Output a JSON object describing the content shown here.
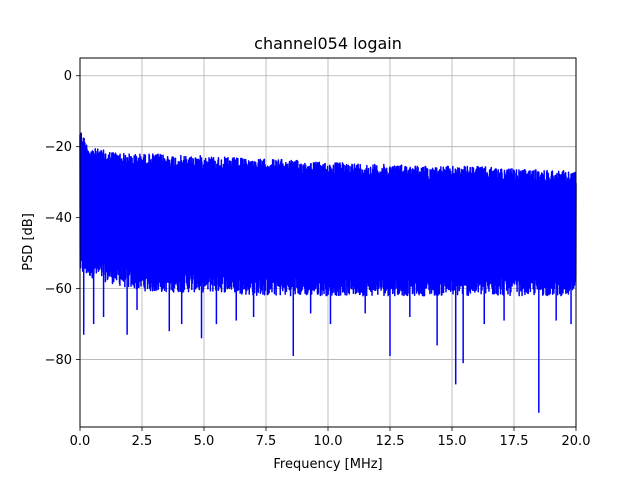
{
  "chart_data": {
    "type": "line",
    "title": "channel054 logain",
    "xlabel": "Frequency [MHz]",
    "ylabel": "PSD [dB]",
    "xlim": [
      0,
      20
    ],
    "ylim": [
      -99,
      5
    ],
    "grid": true,
    "legend": "none",
    "series_color": "#0000ff",
    "x_ticks": [
      0,
      2.5,
      5,
      7.5,
      10,
      12.5,
      15,
      17.5,
      20
    ],
    "x_tick_labels": [
      "0.0",
      "2.5",
      "5.0",
      "7.5",
      "10.0",
      "12.5",
      "15.0",
      "17.5",
      "20.0"
    ],
    "y_ticks": [
      0,
      -20,
      -40,
      -60,
      -80
    ],
    "y_tick_labels": [
      "0",
      "−20",
      "−40",
      "−60",
      "−80"
    ],
    "upper_envelope": {
      "x": [
        0.0,
        0.05,
        0.15,
        0.3,
        0.6,
        1.0,
        2.0,
        3.0,
        4.0,
        5.0,
        6.0,
        7.0,
        8.0,
        9.0,
        10.0,
        11.0,
        12.0,
        13.0,
        14.0,
        15.0,
        16.0,
        17.0,
        18.0,
        19.0,
        20.0
      ],
      "y": [
        -14,
        -15.5,
        -17,
        -19.5,
        -20.5,
        -21,
        -22,
        -22,
        -22.5,
        -22.5,
        -23,
        -23.5,
        -23.5,
        -24,
        -24.5,
        -24.5,
        -25,
        -25,
        -25.5,
        -25.5,
        -25.5,
        -26,
        -26.5,
        -26.5,
        -27
      ]
    },
    "lower_envelope": {
      "x": [
        0.0,
        1.0,
        2.0,
        3.0,
        4.0,
        5.0,
        6.0,
        7.0,
        8.0,
        9.0,
        10.0,
        11.0,
        12.0,
        13.0,
        14.0,
        15.0,
        16.0,
        17.0,
        18.0,
        19.0,
        20.0
      ],
      "y": [
        -56,
        -58,
        -60,
        -61,
        -61,
        -61,
        -61,
        -62,
        -62,
        -62,
        -62,
        -62,
        -62,
        -62,
        -62,
        -62,
        -62,
        -62,
        -62,
        -62,
        -62
      ]
    },
    "notable_dips": [
      {
        "x": 0.15,
        "y": -73
      },
      {
        "x": 0.55,
        "y": -70
      },
      {
        "x": 0.95,
        "y": -68
      },
      {
        "x": 1.9,
        "y": -73
      },
      {
        "x": 2.3,
        "y": -66
      },
      {
        "x": 3.6,
        "y": -72
      },
      {
        "x": 4.1,
        "y": -70
      },
      {
        "x": 4.9,
        "y": -74
      },
      {
        "x": 5.5,
        "y": -70
      },
      {
        "x": 6.3,
        "y": -69
      },
      {
        "x": 7.0,
        "y": -68
      },
      {
        "x": 8.6,
        "y": -79
      },
      {
        "x": 9.3,
        "y": -67
      },
      {
        "x": 10.1,
        "y": -70
      },
      {
        "x": 11.5,
        "y": -67
      },
      {
        "x": 12.5,
        "y": -79
      },
      {
        "x": 13.3,
        "y": -68
      },
      {
        "x": 14.4,
        "y": -76
      },
      {
        "x": 15.15,
        "y": -87
      },
      {
        "x": 15.45,
        "y": -81
      },
      {
        "x": 16.3,
        "y": -70
      },
      {
        "x": 17.1,
        "y": -69
      },
      {
        "x": 18.5,
        "y": -95
      },
      {
        "x": 19.2,
        "y": -69
      },
      {
        "x": 19.8,
        "y": -70
      }
    ]
  }
}
